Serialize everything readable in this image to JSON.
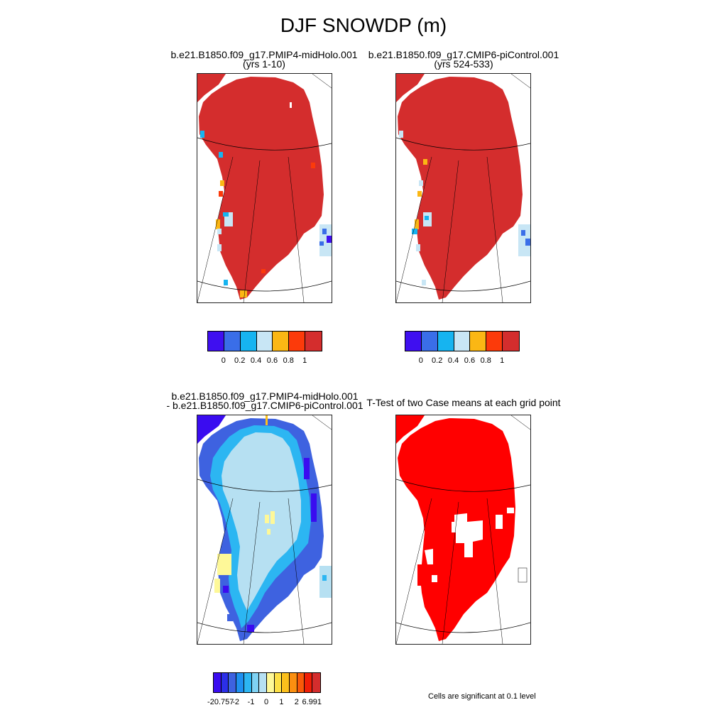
{
  "figure": {
    "title": "DJF SNOWDP (m)",
    "note": "Cells are significant at 0.1 level"
  },
  "panels": [
    {
      "id": "case1",
      "title_line1": "b.e21.B1850.f09_g17.PMIP4-midHolo.001",
      "title_line2": "(yrs 1-10)",
      "field": "case"
    },
    {
      "id": "case2",
      "title_line1": "b.e21.B1850.f09_g17.CMIP6-piControl.001",
      "title_line2": "(yrs 524-533)",
      "field": "case"
    },
    {
      "id": "diff",
      "title_line1": "b.e21.B1850.f09_g17.PMIP4-midHolo.001",
      "title_line2": "- b.e21.B1850.f09_g17.CMIP6-piControl.001",
      "field": "difference"
    },
    {
      "id": "ttest",
      "title_line1": "T-Test of two Case means at each grid point",
      "title_line2": "",
      "field": "significance"
    }
  ],
  "colorbars": {
    "case": {
      "colors": [
        "#3f0ff0",
        "#3a6ee8",
        "#16b4f0",
        "#c8e6f5",
        "#fbb714",
        "#fc3a0a",
        "#d42d2d"
      ],
      "labels": [
        "0",
        "0.2",
        "0.4",
        "0.6",
        "0.8",
        "1"
      ]
    },
    "difference": {
      "colors": [
        "#3a0cf0",
        "#2b2fe8",
        "#3e62e0",
        "#1e90f0",
        "#2cb6f2",
        "#7fd2f3",
        "#b6e0f2",
        "#fef898",
        "#fde046",
        "#fcc01c",
        "#fb8f10",
        "#f95a08",
        "#f01e06",
        "#d42d2d"
      ],
      "labels": [
        "-20.757",
        "-2",
        "-1",
        "0",
        "1",
        "2",
        "6.991"
      ]
    }
  },
  "colors": {
    "significant": "#ff0000",
    "ice_sheet": "#d42d2d",
    "diff_interior": "#b6e0f2"
  }
}
